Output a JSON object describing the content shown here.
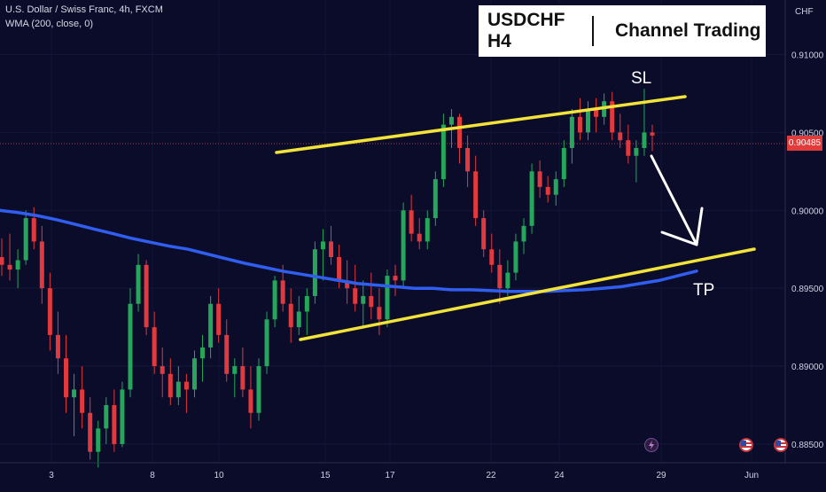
{
  "header": {
    "symbol_line": "U.S. Dollar / Swiss Franc, 4h, FXCM",
    "indicator_line": "WMA (200, close, 0)"
  },
  "title_box": {
    "symbol": "USDCHF H4",
    "strategy": "Channel Trading"
  },
  "price_axis": {
    "unit": "CHF",
    "current_price": "0.90485",
    "current_price_color": "#e23b3b"
  },
  "annotations": {
    "stop_loss": "SL",
    "take_profit": "TP"
  },
  "footer_icons": [
    "lightning-icon",
    "us-flag-icon",
    "us-flag-icon"
  ],
  "colors": {
    "background": "#0b0c2a",
    "bull_candle": "#26a65b",
    "bear_candle": "#e0393e",
    "wma_line": "#2f5ef0",
    "channel_lines": "#f2e33a",
    "arrow": "#ffffff"
  },
  "chart_data": {
    "type": "candlestick",
    "title": "",
    "x_tick_labels": [
      "3",
      "8",
      "10",
      "15",
      "17",
      "22",
      "24",
      "29",
      "Jun"
    ],
    "y_tick_labels": [
      "0.91000",
      "0.90500",
      "0.90000",
      "0.89500",
      "0.89000",
      "0.88500"
    ],
    "ylim": [
      0.8838,
      0.9135
    ],
    "series": [
      {
        "type": "wma",
        "name": "WMA (200, close, 0)",
        "values": [
          0.9,
          0.89985,
          0.89965,
          0.8994,
          0.8991,
          0.8988,
          0.8985,
          0.8982,
          0.89795,
          0.8977,
          0.8975,
          0.8972,
          0.8969,
          0.8966,
          0.89635,
          0.8961,
          0.8959,
          0.8957,
          0.8955,
          0.8953,
          0.8952,
          0.8951,
          0.895,
          0.895,
          0.8949,
          0.8949,
          0.89485,
          0.8948,
          0.8948,
          0.8948,
          0.89485,
          0.8949,
          0.895,
          0.8951,
          0.8953,
          0.8955,
          0.8958,
          0.8961
        ]
      }
    ],
    "channel_upper": [
      [
        0.9067,
        0.9033
      ],
      [
        0.9079,
        0.9082
      ]
    ],
    "channel_lower": [
      [
        0.8918,
        0.9133
      ],
      [
        0.8967,
        0.9165
      ]
    ],
    "candles_ohlc": [
      [
        0.897,
        0.8982,
        0.8958,
        0.8965
      ],
      [
        0.8965,
        0.8985,
        0.8955,
        0.8962
      ],
      [
        0.8962,
        0.8975,
        0.895,
        0.8968
      ],
      [
        0.8968,
        0.9,
        0.8965,
        0.8995
      ],
      [
        0.8995,
        0.9002,
        0.8975,
        0.898
      ],
      [
        0.898,
        0.899,
        0.894,
        0.895
      ],
      [
        0.895,
        0.896,
        0.891,
        0.892
      ],
      [
        0.892,
        0.8935,
        0.8895,
        0.8905
      ],
      [
        0.8905,
        0.892,
        0.887,
        0.888
      ],
      [
        0.888,
        0.8895,
        0.8855,
        0.8885
      ],
      [
        0.8885,
        0.89,
        0.886,
        0.887
      ],
      [
        0.887,
        0.888,
        0.884,
        0.8845
      ],
      [
        0.8845,
        0.8865,
        0.8835,
        0.886
      ],
      [
        0.886,
        0.888,
        0.885,
        0.8875
      ],
      [
        0.8875,
        0.8885,
        0.8845,
        0.885
      ],
      [
        0.885,
        0.889,
        0.8848,
        0.8885
      ],
      [
        0.8885,
        0.895,
        0.888,
        0.894
      ],
      [
        0.894,
        0.8972,
        0.8935,
        0.8965
      ],
      [
        0.8965,
        0.8968,
        0.892,
        0.8925
      ],
      [
        0.8925,
        0.8935,
        0.8895,
        0.89
      ],
      [
        0.89,
        0.8912,
        0.888,
        0.8895
      ],
      [
        0.8895,
        0.8905,
        0.8875,
        0.888
      ],
      [
        0.888,
        0.89,
        0.8875,
        0.889
      ],
      [
        0.889,
        0.8895,
        0.887,
        0.8885
      ],
      [
        0.8885,
        0.891,
        0.888,
        0.8905
      ],
      [
        0.8905,
        0.892,
        0.889,
        0.8912
      ],
      [
        0.8912,
        0.8945,
        0.8905,
        0.894
      ],
      [
        0.894,
        0.895,
        0.8915,
        0.892
      ],
      [
        0.892,
        0.893,
        0.889,
        0.8895
      ],
      [
        0.8895,
        0.8905,
        0.888,
        0.89
      ],
      [
        0.89,
        0.8912,
        0.888,
        0.8885
      ],
      [
        0.8885,
        0.89,
        0.886,
        0.887
      ],
      [
        0.887,
        0.8905,
        0.8865,
        0.89
      ],
      [
        0.89,
        0.8935,
        0.8895,
        0.893
      ],
      [
        0.893,
        0.8958,
        0.8925,
        0.8955
      ],
      [
        0.8955,
        0.8965,
        0.8935,
        0.894
      ],
      [
        0.894,
        0.895,
        0.8915,
        0.8925
      ],
      [
        0.8925,
        0.8945,
        0.892,
        0.8935
      ],
      [
        0.8935,
        0.895,
        0.892,
        0.8945
      ],
      [
        0.8945,
        0.898,
        0.894,
        0.8975
      ],
      [
        0.8975,
        0.8988,
        0.8955,
        0.898
      ],
      [
        0.898,
        0.899,
        0.8965,
        0.897
      ],
      [
        0.897,
        0.8978,
        0.895,
        0.8955
      ],
      [
        0.8955,
        0.8968,
        0.894,
        0.895
      ],
      [
        0.895,
        0.8965,
        0.8935,
        0.894
      ],
      [
        0.894,
        0.8955,
        0.8925,
        0.8945
      ],
      [
        0.8945,
        0.896,
        0.893,
        0.8938
      ],
      [
        0.8938,
        0.895,
        0.892,
        0.893
      ],
      [
        0.893,
        0.8962,
        0.8925,
        0.8958
      ],
      [
        0.8958,
        0.8965,
        0.8945,
        0.8955
      ],
      [
        0.8955,
        0.9005,
        0.895,
        0.9
      ],
      [
        0.9,
        0.901,
        0.898,
        0.8985
      ],
      [
        0.8985,
        0.8995,
        0.8975,
        0.898
      ],
      [
        0.898,
        0.9,
        0.8975,
        0.8995
      ],
      [
        0.8995,
        0.9025,
        0.899,
        0.902
      ],
      [
        0.902,
        0.9062,
        0.9015,
        0.9055
      ],
      [
        0.9055,
        0.9065,
        0.904,
        0.906
      ],
      [
        0.906,
        0.9062,
        0.903,
        0.904
      ],
      [
        0.904,
        0.9048,
        0.9015,
        0.9025
      ],
      [
        0.9025,
        0.9035,
        0.899,
        0.8995
      ],
      [
        0.8995,
        0.9,
        0.897,
        0.8975
      ],
      [
        0.8975,
        0.8985,
        0.896,
        0.8965
      ],
      [
        0.8965,
        0.8975,
        0.894,
        0.895
      ],
      [
        0.895,
        0.8968,
        0.8945,
        0.896
      ],
      [
        0.896,
        0.8985,
        0.8955,
        0.898
      ],
      [
        0.898,
        0.8995,
        0.8972,
        0.899
      ],
      [
        0.899,
        0.903,
        0.8985,
        0.9025
      ],
      [
        0.9025,
        0.9032,
        0.9008,
        0.9015
      ],
      [
        0.9015,
        0.9022,
        0.9005,
        0.901
      ],
      [
        0.901,
        0.9025,
        0.9003,
        0.902
      ],
      [
        0.902,
        0.9045,
        0.9015,
        0.904
      ],
      [
        0.904,
        0.9065,
        0.903,
        0.906
      ],
      [
        0.906,
        0.9072,
        0.9045,
        0.905
      ],
      [
        0.905,
        0.907,
        0.9045,
        0.9065
      ],
      [
        0.9065,
        0.9072,
        0.905,
        0.906
      ],
      [
        0.906,
        0.9075,
        0.9055,
        0.907
      ],
      [
        0.907,
        0.9076,
        0.9045,
        0.905
      ],
      [
        0.905,
        0.9062,
        0.904,
        0.9045
      ],
      [
        0.9045,
        0.9055,
        0.903,
        0.9035
      ],
      [
        0.9035,
        0.9045,
        0.9018,
        0.904
      ],
      [
        0.904,
        0.9078,
        0.9035,
        0.905
      ],
      [
        0.905,
        0.9055,
        0.9038,
        0.9048
      ]
    ]
  }
}
